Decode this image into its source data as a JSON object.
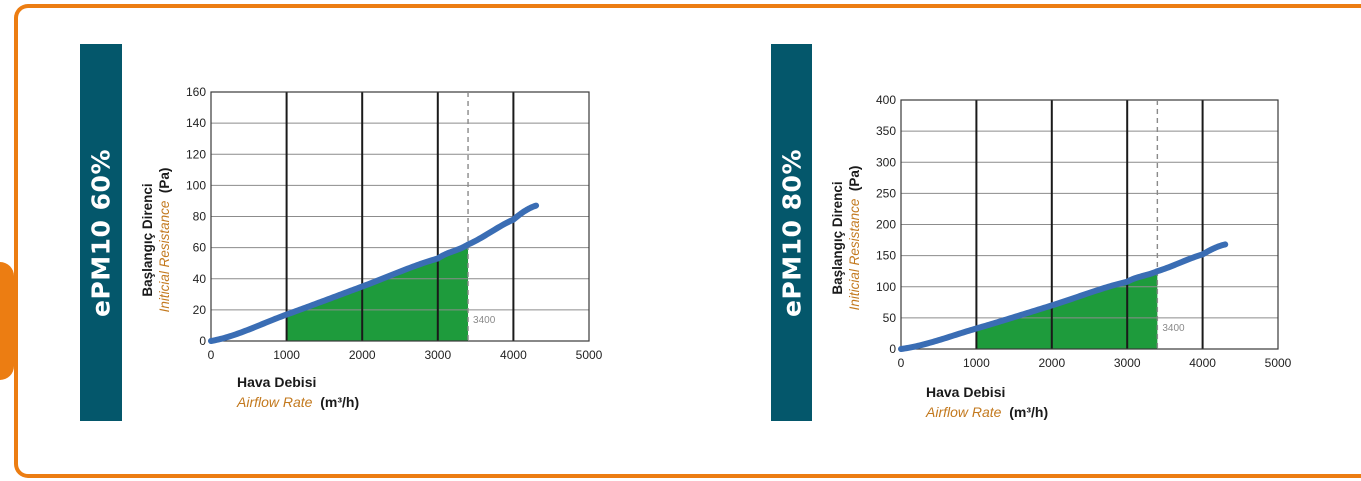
{
  "chart_data": [
    {
      "type": "line",
      "title": "ePM10 60%",
      "ylabel": "Başlangıç Direnci",
      "ylabel_en": "Initicial Resistance",
      "yunit": "(Pa)",
      "xlabel": "Hava Debisi",
      "xlabel_en": "Airflow Rate",
      "xunit": "(m³/h)",
      "xlim": [
        0,
        5000
      ],
      "ylim": [
        0,
        160
      ],
      "xticks": [
        0,
        1000,
        2000,
        3000,
        4000,
        5000
      ],
      "yticks": [
        0,
        20,
        40,
        60,
        80,
        100,
        120,
        140,
        160
      ],
      "x": [
        0,
        1000,
        2000,
        3000,
        3400,
        4000,
        4300
      ],
      "y": [
        0,
        17,
        35,
        53,
        62,
        78,
        87
      ],
      "marker_x": 3400,
      "marker_label": "3400",
      "shaded_range": [
        1000,
        3400
      ],
      "grid": true,
      "line_color": "#3a6db4",
      "fill_color": "#1e9b3c"
    },
    {
      "type": "line",
      "title": "ePM10 80%",
      "ylabel": "Başlangıç Direnci",
      "ylabel_en": "Initicial Resistance",
      "yunit": "(Pa)",
      "xlabel": "Hava Debisi",
      "xlabel_en": "Airflow Rate",
      "xunit": "(m³/h)",
      "xlim": [
        0,
        5000
      ],
      "ylim": [
        0,
        400
      ],
      "xticks": [
        0,
        1000,
        2000,
        3000,
        4000,
        5000
      ],
      "yticks": [
        0,
        50,
        100,
        150,
        200,
        250,
        300,
        350,
        400
      ],
      "x": [
        0,
        1000,
        2000,
        3000,
        3400,
        4000,
        4300
      ],
      "y": [
        0,
        33,
        70,
        108,
        125,
        152,
        168
      ],
      "marker_x": 3400,
      "marker_label": "3400",
      "shaded_range": [
        1000,
        3400
      ],
      "grid": true,
      "line_color": "#3a6db4",
      "fill_color": "#1e9b3c"
    }
  ]
}
